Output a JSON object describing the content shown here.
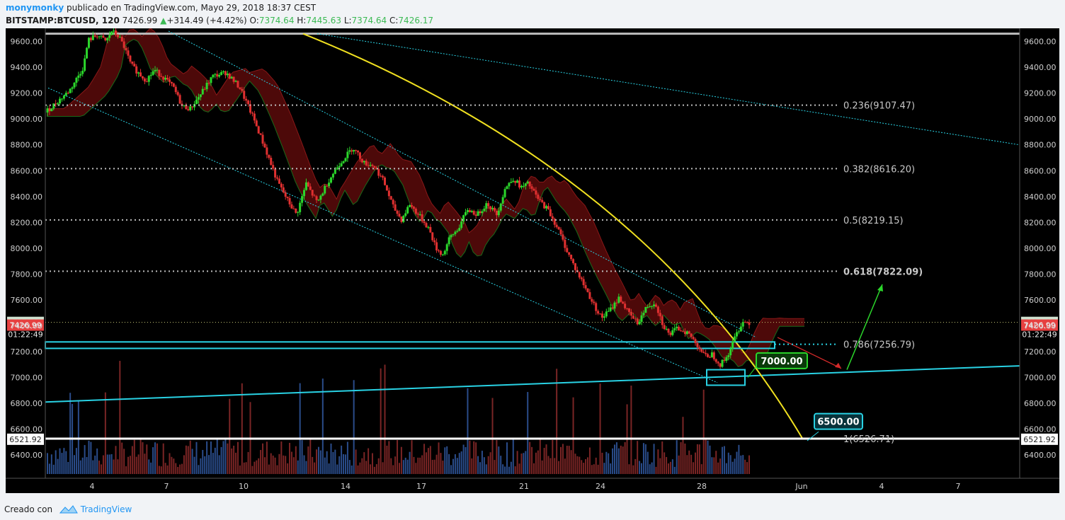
{
  "header": {
    "user": "monymonky",
    "published": "publicado en TradingView.com, Mayo 29, 2018 18:37 CEST",
    "symbol": "BITSTAMP:BTCUSD, 120",
    "last": "7426.99",
    "change": "+314.49 (+4.42%)",
    "open_label": "O:",
    "open": "7374.64",
    "high_label": "H:",
    "high": "7445.63",
    "low_label": "L:",
    "low": "7374.64",
    "close_label": "C:",
    "close": "7426.17"
  },
  "footer": {
    "created_with": "Creado con",
    "brand": "TradingView"
  },
  "colors": {
    "bull": "#2bd62b",
    "bear": "#e03030",
    "cyan": "#29d2e4",
    "yellow": "#f0e020",
    "cloud_red": "#5a0a0a",
    "cloud_green": "#0c3c0c",
    "tag_last": "#cfe0cf",
    "tag_price": "#e64040"
  },
  "chart_data": {
    "type": "candlestick",
    "ylim": [
      6220,
      9680
    ],
    "y_ticks": [
      "9600.00",
      "9400.00",
      "9200.00",
      "9000.00",
      "8800.00",
      "8600.00",
      "8400.00",
      "8200.00",
      "8000.00",
      "7800.00",
      "7600.00",
      "7400.00",
      "7200.00",
      "7000.00",
      "6800.00",
      "6600.00",
      "6400.00"
    ],
    "x_ticks": [
      "4",
      "7",
      "10",
      "14",
      "17",
      "21",
      "24",
      "28",
      "Jun",
      "4",
      "7"
    ],
    "fib_levels": [
      {
        "label": "0.236(9107.47)",
        "value": 9107.47
      },
      {
        "label": "0.382(8616.20)",
        "value": 8616.2
      },
      {
        "label": "0.5(8219.15)",
        "value": 8219.15
      },
      {
        "label": "0.618(7822.09)",
        "value": 7822.09
      },
      {
        "label": "0.786(7256.79)",
        "value": 7256.79
      },
      {
        "label": "1(6526.71)",
        "value": 6526.71
      }
    ],
    "resistance_top": 9660,
    "price_tags": [
      {
        "label": "7426.17",
        "value": 7426.17
      },
      {
        "label": "01:22:49"
      },
      {
        "label": "7426.99",
        "value": 7426.99
      },
      {
        "label": "6521.92",
        "value": 6521.92
      }
    ],
    "annotations": [
      {
        "label": "7000.00",
        "value": 7000
      },
      {
        "label": "6500.00",
        "value": 6500
      }
    ]
  }
}
